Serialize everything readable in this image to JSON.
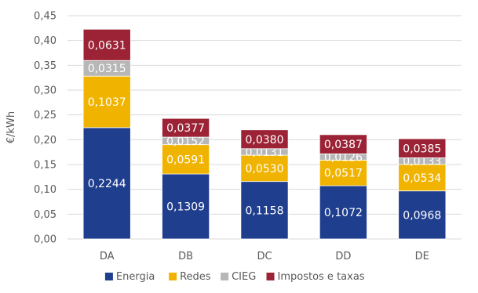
{
  "chart_data": {
    "type": "bar",
    "stacked": true,
    "categories": [
      "DA",
      "DB",
      "DC",
      "DD",
      "DE"
    ],
    "series": [
      {
        "name": "Energia",
        "color": "#203e8e",
        "values": [
          0.2244,
          0.1309,
          0.1158,
          0.1072,
          0.0968
        ],
        "labels": [
          "0,2244",
          "0,1309",
          "0,1158",
          "0,1072",
          "0,0968"
        ]
      },
      {
        "name": "Redes",
        "color": "#f0b400",
        "values": [
          0.1037,
          0.0591,
          0.053,
          0.0517,
          0.0534
        ],
        "labels": [
          "0,1037",
          "0,0591",
          "0,0530",
          "0,0517",
          "0,0534"
        ]
      },
      {
        "name": "CIEG",
        "color": "#b7b7b7",
        "values": [
          0.0315,
          0.0152,
          0.0131,
          0.0126,
          0.0133
        ],
        "labels": [
          "0,0315",
          "0,0152",
          "0,0131",
          "0,0126",
          "0,0133"
        ]
      },
      {
        "name": "Impostos e taxas",
        "color": "#9b2335",
        "values": [
          0.0631,
          0.0377,
          0.038,
          0.0387,
          0.0385
        ],
        "labels": [
          "0,0631",
          "0,0377",
          "0,0380",
          "0,0387",
          "0,0385"
        ]
      }
    ],
    "ylabel": "€/kWh",
    "ylim": [
      0,
      0.45
    ],
    "yticks": [
      "0,00",
      "0,05",
      "0,10",
      "0,15",
      "0,20",
      "0,25",
      "0,30",
      "0,35",
      "0,40",
      "0,45"
    ],
    "grid": true,
    "legend": "bottom"
  }
}
